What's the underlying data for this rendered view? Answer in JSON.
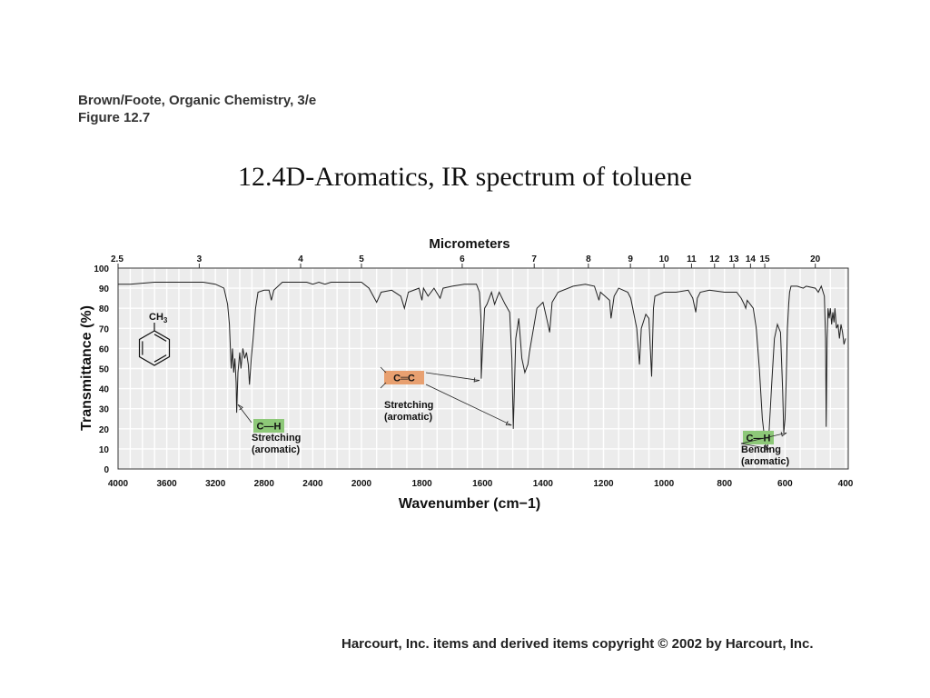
{
  "source": {
    "line1": "Brown/Foote, Organic Chemistry, 3/e",
    "line2": "Figure 12.7"
  },
  "title": "12.4D-Aromatics, IR spectrum of toluene",
  "footer": "Harcourt, Inc. items and derived items copyright © 2002 by Harcourt, Inc.",
  "chart_data": {
    "type": "line",
    "xlabel": "Wavenumber (cm−1)",
    "x2label": "Micrometers",
    "ylabel": "Transmittance (%)",
    "xlim": [
      4000,
      400
    ],
    "ylim": [
      0,
      100
    ],
    "grid": true,
    "x_ticks": [
      {
        "value": 4000,
        "label": "4000"
      },
      {
        "value": 3600,
        "label": "3600"
      },
      {
        "value": 3200,
        "label": "3200"
      },
      {
        "value": 2800,
        "label": "2800"
      },
      {
        "value": 2400,
        "label": "2400"
      },
      {
        "value": 2000,
        "label": "2000"
      },
      {
        "value": 1800,
        "label": "1800"
      },
      {
        "value": 1600,
        "label": "1600"
      },
      {
        "value": 1400,
        "label": "1400"
      },
      {
        "value": 1200,
        "label": "1200"
      },
      {
        "value": 1000,
        "label": "1000"
      },
      {
        "value": 800,
        "label": "800"
      },
      {
        "value": 600,
        "label": "600"
      },
      {
        "value": 400,
        "label": "400"
      }
    ],
    "micrometer_ticks": [
      {
        "value": 4000,
        "label": "2.5"
      },
      {
        "value": 3333,
        "label": "3"
      },
      {
        "value": 2500,
        "label": "4"
      },
      {
        "value": 2000,
        "label": "5"
      },
      {
        "value": 1667,
        "label": "6"
      },
      {
        "value": 1429,
        "label": "7"
      },
      {
        "value": 1250,
        "label": "8"
      },
      {
        "value": 1111,
        "label": "9"
      },
      {
        "value": 1000,
        "label": "10"
      },
      {
        "value": 909,
        "label": "11"
      },
      {
        "value": 833,
        "label": "12"
      },
      {
        "value": 769,
        "label": "13"
      },
      {
        "value": 714,
        "label": "14"
      },
      {
        "value": 667,
        "label": "15"
      },
      {
        "value": 500,
        "label": "20"
      }
    ],
    "y_ticks": [
      0,
      10,
      20,
      30,
      40,
      50,
      60,
      70,
      80,
      90,
      100
    ],
    "series": [
      {
        "color": "#222222",
        "points": [
          [
            4000,
            92
          ],
          [
            3900,
            92
          ],
          [
            3700,
            93
          ],
          [
            3500,
            93
          ],
          [
            3300,
            93
          ],
          [
            3200,
            92
          ],
          [
            3130,
            90
          ],
          [
            3100,
            82
          ],
          [
            3085,
            72
          ],
          [
            3070,
            50
          ],
          [
            3060,
            60
          ],
          [
            3050,
            48
          ],
          [
            3040,
            55
          ],
          [
            3030,
            43
          ],
          [
            3025,
            28
          ],
          [
            3015,
            48
          ],
          [
            3000,
            58
          ],
          [
            2990,
            50
          ],
          [
            2975,
            60
          ],
          [
            2960,
            55
          ],
          [
            2945,
            58
          ],
          [
            2930,
            52
          ],
          [
            2920,
            42
          ],
          [
            2905,
            55
          ],
          [
            2890,
            65
          ],
          [
            2870,
            80
          ],
          [
            2850,
            88
          ],
          [
            2800,
            89
          ],
          [
            2760,
            89
          ],
          [
            2740,
            84
          ],
          [
            2720,
            89
          ],
          [
            2650,
            93
          ],
          [
            2550,
            93
          ],
          [
            2450,
            93
          ],
          [
            2400,
            92
          ],
          [
            2350,
            93
          ],
          [
            2300,
            92
          ],
          [
            2250,
            93
          ],
          [
            2150,
            93
          ],
          [
            2050,
            93
          ],
          [
            2000,
            93
          ],
          [
            1975,
            90
          ],
          [
            1950,
            83
          ],
          [
            1935,
            88
          ],
          [
            1900,
            89
          ],
          [
            1870,
            86
          ],
          [
            1858,
            80
          ],
          [
            1845,
            88
          ],
          [
            1810,
            90
          ],
          [
            1800,
            84
          ],
          [
            1795,
            90
          ],
          [
            1780,
            86
          ],
          [
            1760,
            90
          ],
          [
            1740,
            85
          ],
          [
            1730,
            90
          ],
          [
            1700,
            91
          ],
          [
            1660,
            92
          ],
          [
            1620,
            92
          ],
          [
            1610,
            88
          ],
          [
            1605,
            75
          ],
          [
            1604,
            45
          ],
          [
            1600,
            60
          ],
          [
            1593,
            80
          ],
          [
            1585,
            82
          ],
          [
            1570,
            88
          ],
          [
            1560,
            82
          ],
          [
            1545,
            88
          ],
          [
            1525,
            82
          ],
          [
            1510,
            78
          ],
          [
            1503,
            55
          ],
          [
            1498,
            20
          ],
          [
            1490,
            65
          ],
          [
            1480,
            75
          ],
          [
            1470,
            55
          ],
          [
            1460,
            48
          ],
          [
            1450,
            52
          ],
          [
            1445,
            58
          ],
          [
            1420,
            80
          ],
          [
            1400,
            83
          ],
          [
            1385,
            73
          ],
          [
            1378,
            68
          ],
          [
            1370,
            83
          ],
          [
            1350,
            88
          ],
          [
            1300,
            91
          ],
          [
            1260,
            92
          ],
          [
            1230,
            91
          ],
          [
            1215,
            84
          ],
          [
            1210,
            88
          ],
          [
            1180,
            84
          ],
          [
            1175,
            75
          ],
          [
            1165,
            86
          ],
          [
            1150,
            90
          ],
          [
            1120,
            88
          ],
          [
            1110,
            85
          ],
          [
            1090,
            70
          ],
          [
            1081,
            52
          ],
          [
            1075,
            70
          ],
          [
            1060,
            77
          ],
          [
            1050,
            75
          ],
          [
            1041,
            46
          ],
          [
            1035,
            80
          ],
          [
            1030,
            86
          ],
          [
            1000,
            88
          ],
          [
            960,
            88
          ],
          [
            920,
            89
          ],
          [
            905,
            85
          ],
          [
            895,
            78
          ],
          [
            890,
            85
          ],
          [
            880,
            88
          ],
          [
            850,
            89
          ],
          [
            800,
            88
          ],
          [
            760,
            88
          ],
          [
            745,
            85
          ],
          [
            735,
            82
          ],
          [
            730,
            80
          ],
          [
            725,
            84
          ],
          [
            715,
            82
          ],
          [
            705,
            80
          ],
          [
            695,
            70
          ],
          [
            685,
            50
          ],
          [
            675,
            25
          ],
          [
            665,
            12
          ],
          [
            660,
            10
          ],
          [
            654,
            15
          ],
          [
            645,
            40
          ],
          [
            635,
            65
          ],
          [
            625,
            72
          ],
          [
            615,
            68
          ],
          [
            608,
            40
          ],
          [
            604,
            18
          ],
          [
            600,
            25
          ],
          [
            596,
            45
          ],
          [
            592,
            70
          ],
          [
            588,
            82
          ],
          [
            585,
            88
          ],
          [
            580,
            91
          ],
          [
            560,
            91
          ],
          [
            540,
            90
          ],
          [
            530,
            91
          ],
          [
            500,
            90
          ],
          [
            490,
            88
          ],
          [
            480,
            91
          ],
          [
            470,
            86
          ],
          [
            466,
            65
          ],
          [
            464,
            21
          ],
          [
            461,
            65
          ],
          [
            458,
            80
          ],
          [
            454,
            75
          ],
          [
            450,
            80
          ],
          [
            446,
            72
          ],
          [
            442,
            78
          ],
          [
            438,
            73
          ],
          [
            435,
            80
          ],
          [
            430,
            70
          ],
          [
            425,
            72
          ],
          [
            420,
            65
          ],
          [
            415,
            72
          ],
          [
            410,
            68
          ],
          [
            405,
            62
          ],
          [
            400,
            65
          ]
        ]
      }
    ],
    "annotations": [
      {
        "badge": "C—H",
        "badge_color": "#8dc878",
        "lines": [
          "Stretching",
          "(aromatic)"
        ],
        "target_x": 3030,
        "target_y": 32
      },
      {
        "badge": "C═C",
        "badge_color": "#e8a070",
        "lines": [
          "Stretching",
          "(aromatic)"
        ],
        "target_x": 1604,
        "target_y": 45,
        "target2_x": 1498,
        "target2_y": 20
      },
      {
        "badge": "C—H",
        "badge_color": "#8dc878",
        "lines": [
          "Bending",
          "(aromatic)"
        ],
        "target_x": 660,
        "target_y": 10,
        "target2_x": 604,
        "target2_y": 18
      }
    ],
    "structure_label": "CH3"
  }
}
